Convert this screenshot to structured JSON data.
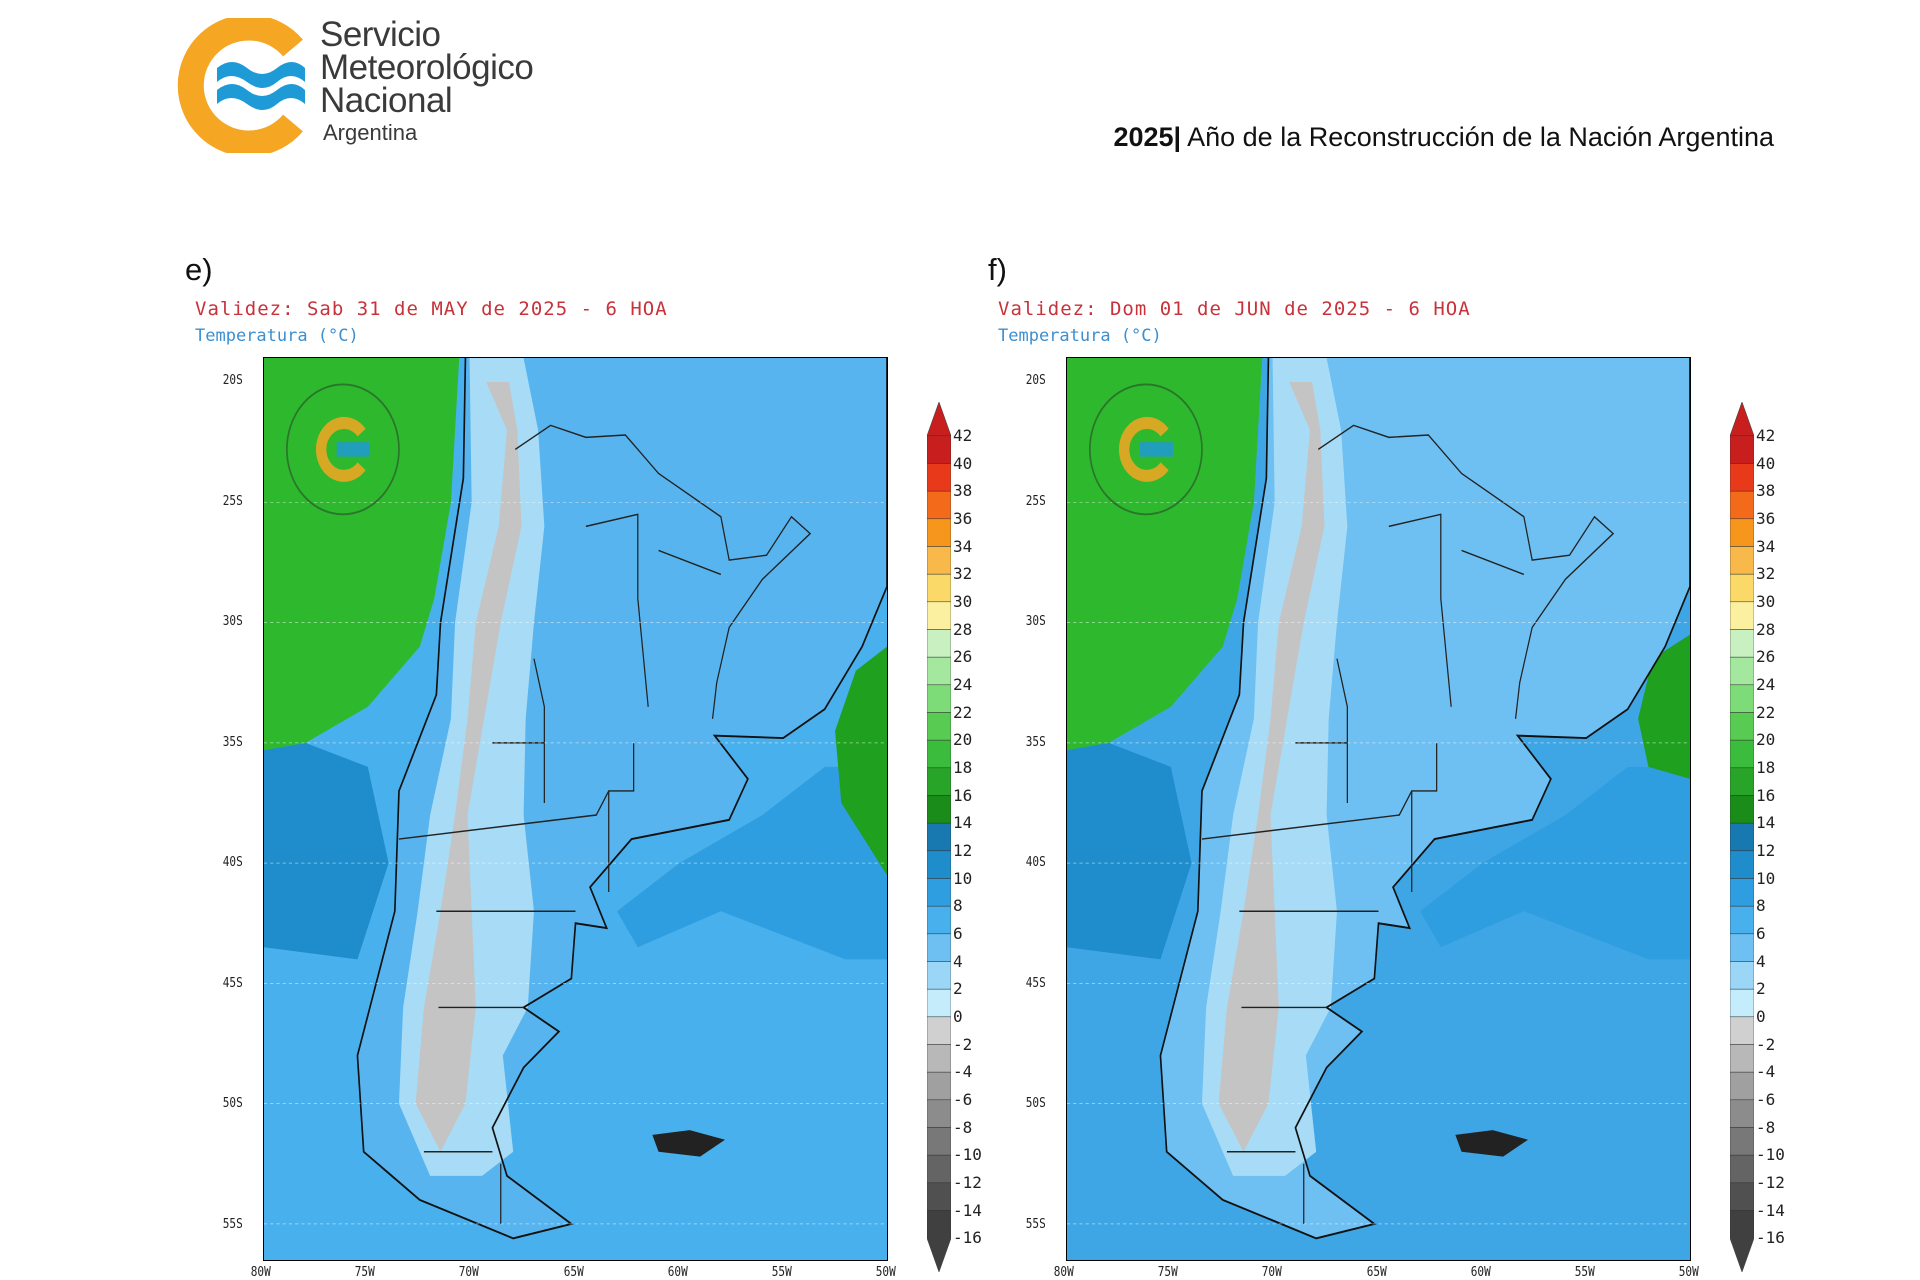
{
  "header": {
    "logo_lines": [
      "Servicio",
      "Meteorológico",
      "Nacional"
    ],
    "logo_country": "Argentina",
    "motto_year": "2025|",
    "motto_text": " Año de la Reconstrucción de la Nación Argentina"
  },
  "colors": {
    "logo_orange": "#f5a623",
    "logo_blue": "#1e9ad6",
    "validity_red": "#c8323a",
    "subtitle_blue": "#3c8fd0"
  },
  "chart_data": [
    {
      "type": "heatmap",
      "panel": "e)",
      "title": "Validez: Sab 31 de MAY de 2025 - 6 HOA",
      "subtitle": "Temperatura (°C)",
      "lat_ticks": [
        "20S",
        "25S",
        "30S",
        "35S",
        "40S",
        "45S",
        "50S",
        "55S"
      ],
      "lon_ticks": [
        "80W",
        "75W",
        "70W",
        "65W",
        "60W",
        "55W",
        "50W"
      ],
      "lat_range": [
        -56.5,
        -19
      ],
      "lon_range": [
        -80,
        -50
      ],
      "colorbar_levels": [
        42,
        40,
        38,
        36,
        34,
        32,
        30,
        28,
        26,
        24,
        22,
        20,
        18,
        16,
        14,
        12,
        10,
        8,
        6,
        4,
        2,
        0,
        -2,
        -4,
        -6,
        -8,
        -10,
        -12,
        -14,
        -16
      ]
    },
    {
      "type": "heatmap",
      "panel": "f)",
      "title": "Validez: Dom 01 de JUN de 2025 - 6 HOA",
      "subtitle": "Temperatura (°C)",
      "lat_ticks": [
        "20S",
        "25S",
        "30S",
        "35S",
        "40S",
        "45S",
        "50S",
        "55S"
      ],
      "lon_ticks": [
        "80W",
        "75W",
        "70W",
        "65W",
        "60W",
        "55W",
        "50W"
      ],
      "lat_range": [
        -56.5,
        -19
      ],
      "lon_range": [
        -80,
        -50
      ],
      "colorbar_levels": [
        42,
        40,
        38,
        36,
        34,
        32,
        30,
        28,
        26,
        24,
        22,
        20,
        18,
        16,
        14,
        12,
        10,
        8,
        6,
        4,
        2,
        0,
        -2,
        -4,
        -6,
        -8,
        -10,
        -12,
        -14,
        -16
      ]
    }
  ]
}
